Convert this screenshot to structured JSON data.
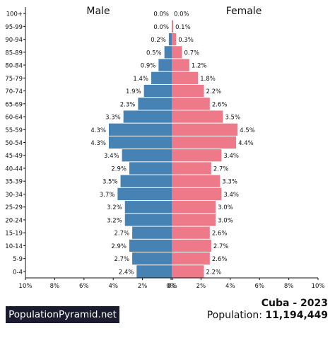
{
  "chart_data": {
    "type": "bar",
    "orientation": "horizontal-butterfly",
    "xlabel": "",
    "ylabel": "",
    "xlim": [
      -10,
      10
    ],
    "x_ticks": [
      "10%",
      "8%",
      "6%",
      "4%",
      "2%",
      "0%",
      "0%",
      "2%",
      "4%",
      "6%",
      "8%",
      "10%"
    ],
    "categories": [
      "100+",
      "95-99",
      "90-94",
      "85-89",
      "80-84",
      "75-79",
      "70-74",
      "65-69",
      "60-64",
      "55-59",
      "50-54",
      "45-49",
      "40-44",
      "35-39",
      "30-34",
      "25-29",
      "20-24",
      "15-19",
      "10-14",
      "5-9",
      "0-4"
    ],
    "series": [
      {
        "name": "Male",
        "color": "#4682b4",
        "values": [
          0.0,
          0.0,
          0.2,
          0.5,
          0.9,
          1.4,
          1.9,
          2.3,
          3.3,
          4.3,
          4.3,
          3.4,
          2.9,
          3.5,
          3.7,
          3.2,
          3.2,
          2.7,
          2.9,
          2.7,
          2.4
        ],
        "labels": [
          "0.0%",
          "0.0%",
          "0.2%",
          "0.5%",
          "0.9%",
          "1.4%",
          "1.9%",
          "2.3%",
          "3.3%",
          "4.3%",
          "4.3%",
          "3.4%",
          "2.9%",
          "3.5%",
          "3.7%",
          "3.2%",
          "3.2%",
          "2.7%",
          "2.9%",
          "2.7%",
          "2.4%"
        ]
      },
      {
        "name": "Female",
        "color": "#ee7989",
        "values": [
          0.0,
          0.1,
          0.3,
          0.7,
          1.2,
          1.8,
          2.2,
          2.6,
          3.5,
          4.5,
          4.4,
          3.4,
          2.7,
          3.3,
          3.4,
          3.0,
          3.0,
          2.6,
          2.7,
          2.6,
          2.2
        ],
        "labels": [
          "0.0%",
          "0.1%",
          "0.3%",
          "0.7%",
          "1.2%",
          "1.8%",
          "2.2%",
          "2.6%",
          "3.5%",
          "4.5%",
          "4.4%",
          "3.4%",
          "2.7%",
          "3.3%",
          "3.4%",
          "3.0%",
          "3.0%",
          "2.6%",
          "2.7%",
          "2.6%",
          "2.2%"
        ]
      }
    ],
    "grid": false
  },
  "footer": {
    "brand": "PopulationPyramid.net",
    "title": "Cuba - 2023",
    "population_label": "Population:",
    "population_value": "11,194,449"
  },
  "colors": {
    "male": "#4682b4",
    "female": "#ee7989",
    "badge": "#1b1b2f"
  }
}
